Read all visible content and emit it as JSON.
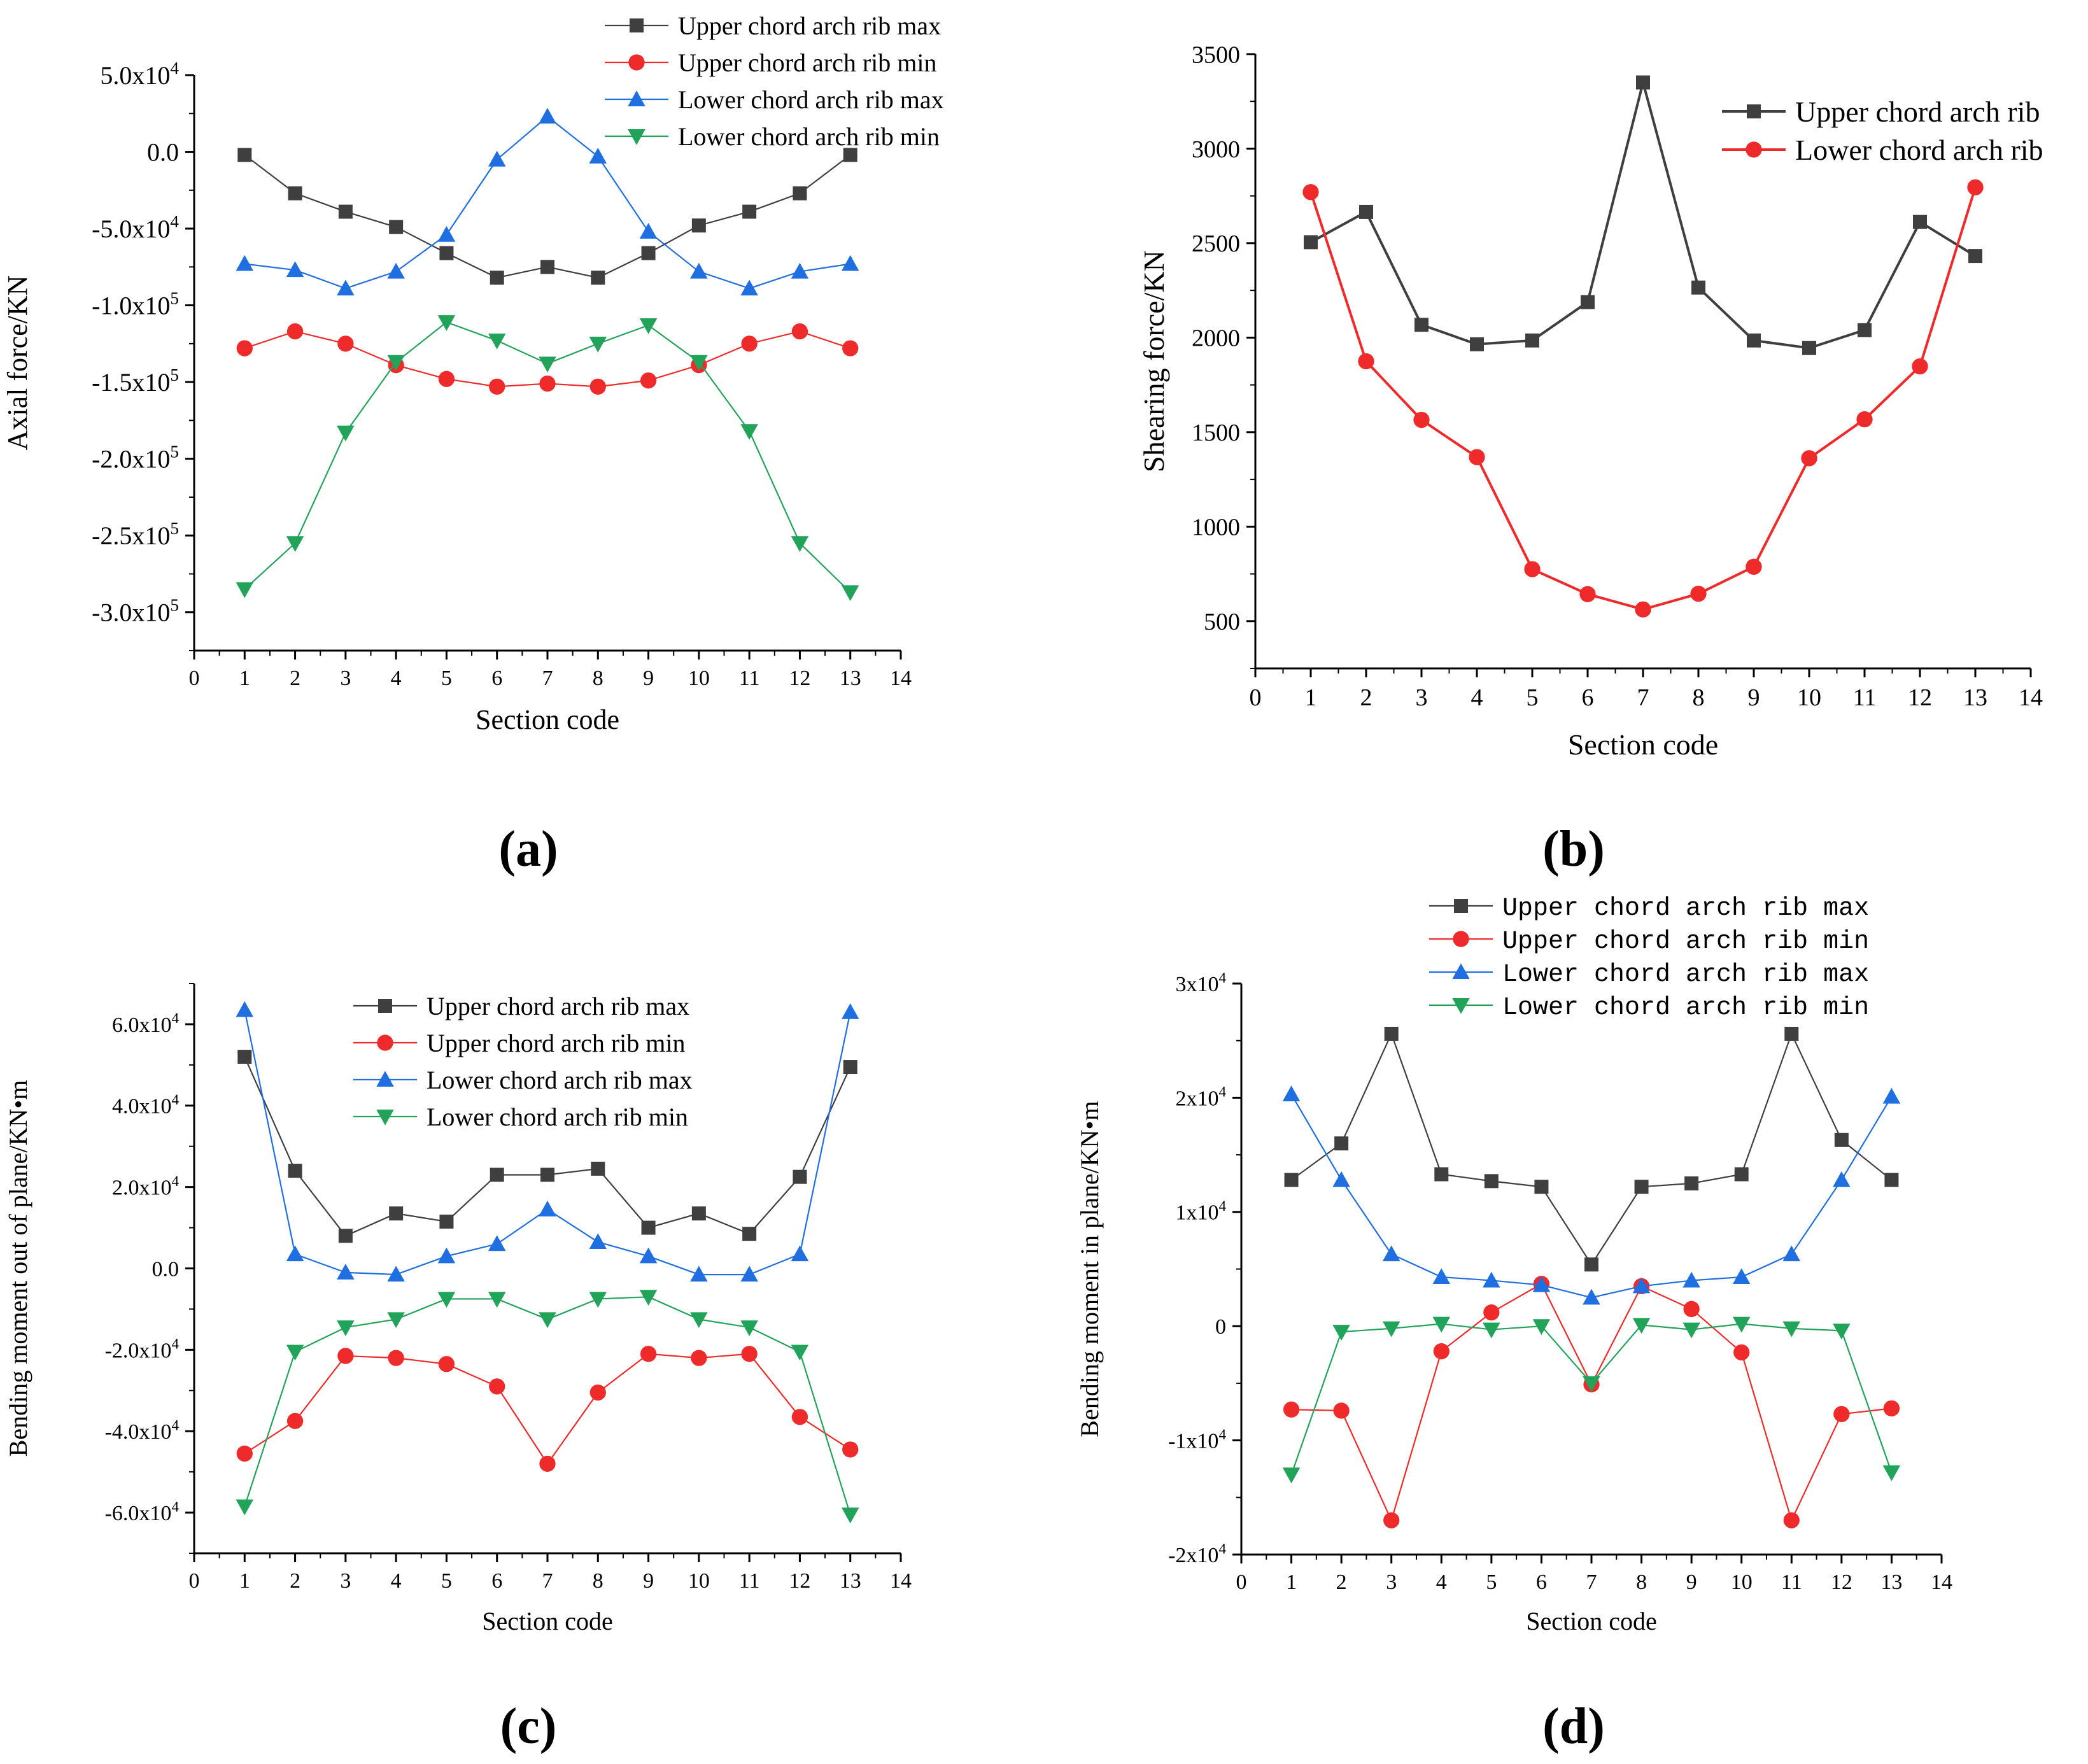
{
  "figure": {
    "panels": [
      "(a)",
      "(b)",
      "(c)",
      "(d)"
    ],
    "colors": {
      "upper_max": "#3f3f3f",
      "upper_min": "#ee2a2a",
      "lower_max": "#1f6fe0",
      "lower_min": "#21a35a",
      "axis": "#000000"
    }
  },
  "chart_data": [
    {
      "id": "a",
      "type": "line",
      "panel_label": "(a)",
      "xlabel": "Section code",
      "ylabel": "Axial force/KN",
      "xlim": [
        0,
        14
      ],
      "ylim": [
        -325000,
        50000
      ],
      "x_ticks": [
        "0",
        "1",
        "2",
        "3",
        "4",
        "5",
        "6",
        "7",
        "8",
        "9",
        "10",
        "11",
        "12",
        "13",
        "14"
      ],
      "y_tick_values": [
        50000,
        0,
        -50000,
        -100000,
        -150000,
        -200000,
        -250000,
        -300000
      ],
      "y_tick_labels": [
        {
          "mant": "5.0x10",
          "exp": "4"
        },
        {
          "mant": "0.0",
          "exp": ""
        },
        {
          "mant": "-5.0x10",
          "exp": "4"
        },
        {
          "mant": "-1.0x10",
          "exp": "5"
        },
        {
          "mant": "-1.5x10",
          "exp": "5"
        },
        {
          "mant": "-2.0x10",
          "exp": "5"
        },
        {
          "mant": "-2.5x10",
          "exp": "5"
        },
        {
          "mant": "-3.0x10",
          "exp": "5"
        }
      ],
      "legend": "top-right outside",
      "x": [
        1,
        2,
        3,
        4,
        5,
        6,
        7,
        8,
        9,
        10,
        11,
        12,
        13
      ],
      "series": [
        {
          "name": "Upper chord arch rib max",
          "marker": "square",
          "color": "#3f3f3f",
          "values": [
            -2000,
            -27000,
            -39000,
            -49000,
            -66000,
            -82000,
            -75000,
            -82000,
            -66000,
            -48000,
            -39000,
            -27000,
            -2000
          ]
        },
        {
          "name": "Upper chord arch rib min",
          "marker": "circle",
          "color": "#ee2a2a",
          "values": [
            -128000,
            -117000,
            -125000,
            -139000,
            -148000,
            -153000,
            -151000,
            -153000,
            -149000,
            -139000,
            -125000,
            -117000,
            -128000
          ]
        },
        {
          "name": "Lower chord arch rib max",
          "marker": "triangle-up",
          "color": "#1f6fe0",
          "values": [
            -73000,
            -77000,
            -89000,
            -78000,
            -54000,
            -5000,
            23000,
            -3000,
            -52000,
            -78000,
            -89000,
            -78000,
            -73000
          ]
        },
        {
          "name": "Lower chord arch rib min",
          "marker": "triangle-down",
          "color": "#21a35a",
          "values": [
            -285000,
            -255000,
            -183000,
            -137000,
            -111000,
            -123000,
            -138000,
            -125000,
            -113000,
            -137000,
            -182000,
            -255000,
            -287000
          ]
        }
      ]
    },
    {
      "id": "b",
      "type": "line",
      "panel_label": "(b)",
      "xlabel": "Section code",
      "ylabel": "Shearing force/KN",
      "xlim": [
        0,
        14
      ],
      "ylim": [
        250,
        3500
      ],
      "x_ticks": [
        "0",
        "1",
        "2",
        "3",
        "4",
        "5",
        "6",
        "7",
        "8",
        "9",
        "10",
        "11",
        "12",
        "13",
        "14"
      ],
      "y_tick_values": [
        3500,
        3000,
        2500,
        2000,
        1500,
        1000,
        500
      ],
      "y_tick_labels": [
        {
          "mant": "3500",
          "exp": ""
        },
        {
          "mant": "3000",
          "exp": ""
        },
        {
          "mant": "2500",
          "exp": ""
        },
        {
          "mant": "2000",
          "exp": ""
        },
        {
          "mant": "1500",
          "exp": ""
        },
        {
          "mant": "1000",
          "exp": ""
        },
        {
          "mant": "500",
          "exp": ""
        }
      ],
      "legend": "top-right",
      "x": [
        1,
        2,
        3,
        4,
        5,
        6,
        7,
        8,
        9,
        10,
        11,
        12,
        13
      ],
      "series": [
        {
          "name": "Upper chord arch rib",
          "marker": "square",
          "color": "#3f3f3f",
          "values": [
            2505,
            2665,
            2068,
            1965,
            1985,
            2188,
            3350,
            2265,
            1985,
            1945,
            2040,
            2612,
            2432
          ]
        },
        {
          "name": "Lower chord arch rib",
          "marker": "circle",
          "color": "#ee2a2a",
          "values": [
            2770,
            1875,
            1565,
            1368,
            775,
            643,
            562,
            645,
            788,
            1362,
            1568,
            1848,
            2795
          ]
        }
      ]
    },
    {
      "id": "c",
      "type": "line",
      "panel_label": "(c)",
      "xlabel": "Section code",
      "ylabel": "Bending moment out of plane/KN•m",
      "xlim": [
        0,
        14
      ],
      "ylim": [
        -70000,
        70000
      ],
      "x_ticks": [
        "0",
        "1",
        "2",
        "3",
        "4",
        "5",
        "6",
        "7",
        "8",
        "9",
        "10",
        "11",
        "12",
        "13",
        "14"
      ],
      "y_tick_values": [
        60000,
        40000,
        20000,
        0,
        -20000,
        -40000,
        -60000
      ],
      "y_tick_labels": [
        {
          "mant": "6.0x10",
          "exp": "4"
        },
        {
          "mant": "4.0x10",
          "exp": "4"
        },
        {
          "mant": "2.0x10",
          "exp": "4"
        },
        {
          "mant": "0.0",
          "exp": ""
        },
        {
          "mant": "-2.0x10",
          "exp": "4"
        },
        {
          "mant": "-4.0x10",
          "exp": "4"
        },
        {
          "mant": "-6.0x10",
          "exp": "4"
        }
      ],
      "legend": "top-center",
      "x": [
        1,
        2,
        3,
        4,
        5,
        6,
        7,
        8,
        9,
        10,
        11,
        12,
        13
      ],
      "series": [
        {
          "name": "Upper chord arch rib max",
          "marker": "square",
          "color": "#3f3f3f",
          "values": [
            52000,
            24000,
            8000,
            13500,
            11500,
            23000,
            23000,
            24500,
            10000,
            13500,
            8500,
            22500,
            49500
          ]
        },
        {
          "name": "Upper chord arch rib min",
          "marker": "circle",
          "color": "#ee2a2a",
          "values": [
            -45500,
            -37500,
            -21500,
            -22000,
            -23500,
            -29000,
            -48000,
            -30500,
            -21000,
            -22000,
            -21000,
            -36500,
            -44500
          ]
        },
        {
          "name": "Lower chord arch rib max",
          "marker": "triangle-up",
          "color": "#1f6fe0",
          "values": [
            63500,
            3500,
            -1000,
            -1500,
            3000,
            6000,
            14500,
            6500,
            3000,
            -1500,
            -1500,
            3500,
            63000
          ]
        },
        {
          "name": "Lower chord arch rib min",
          "marker": "triangle-down",
          "color": "#21a35a",
          "values": [
            -58500,
            -20500,
            -14500,
            -12500,
            -7500,
            -7500,
            -12500,
            -7500,
            -7000,
            -12500,
            -14500,
            -20500,
            -60500
          ]
        }
      ]
    },
    {
      "id": "d",
      "type": "line",
      "panel_label": "(d)",
      "xlabel": "Section code",
      "ylabel": "Bending moment in plane/KN•m",
      "xlim": [
        0,
        14
      ],
      "ylim": [
        -20000,
        30000
      ],
      "x_ticks": [
        "0",
        "1",
        "2",
        "3",
        "4",
        "5",
        "6",
        "7",
        "8",
        "9",
        "10",
        "11",
        "12",
        "13",
        "14"
      ],
      "y_tick_values": [
        30000,
        20000,
        10000,
        0,
        -10000,
        -20000
      ],
      "y_tick_labels": [
        {
          "mant": "3x10",
          "exp": "4"
        },
        {
          "mant": "2x10",
          "exp": "4"
        },
        {
          "mant": "1x10",
          "exp": "4"
        },
        {
          "mant": "0",
          "exp": ""
        },
        {
          "mant": "-1x10",
          "exp": "4"
        },
        {
          "mant": "-2x10",
          "exp": "4"
        }
      ],
      "legend": "top-center outside",
      "x": [
        1,
        2,
        3,
        4,
        5,
        6,
        7,
        8,
        9,
        10,
        11,
        12,
        13
      ],
      "series": [
        {
          "name": "Upper chord arch rib max",
          "marker": "square",
          "color": "#3f3f3f",
          "values": [
            12800,
            16000,
            25600,
            13300,
            12700,
            12200,
            5400,
            12200,
            12500,
            13300,
            25600,
            16300,
            12800
          ]
        },
        {
          "name": "Upper chord arch rib min",
          "marker": "circle",
          "color": "#ee2a2a",
          "values": [
            -7300,
            -7400,
            -17000,
            -2200,
            1200,
            3700,
            -5100,
            3500,
            1500,
            -2300,
            -17000,
            -7700,
            -7200
          ]
        },
        {
          "name": "Lower chord arch rib max",
          "marker": "triangle-up",
          "color": "#1f6fe0",
          "values": [
            20300,
            12800,
            6300,
            4300,
            4000,
            3600,
            2500,
            3500,
            4000,
            4300,
            6300,
            12800,
            20100
          ]
        },
        {
          "name": "Lower chord arch rib min",
          "marker": "triangle-down",
          "color": "#21a35a",
          "values": [
            -13000,
            -500,
            -200,
            200,
            -300,
            0,
            -5000,
            100,
            -300,
            200,
            -200,
            -400,
            -12800
          ]
        }
      ]
    }
  ]
}
